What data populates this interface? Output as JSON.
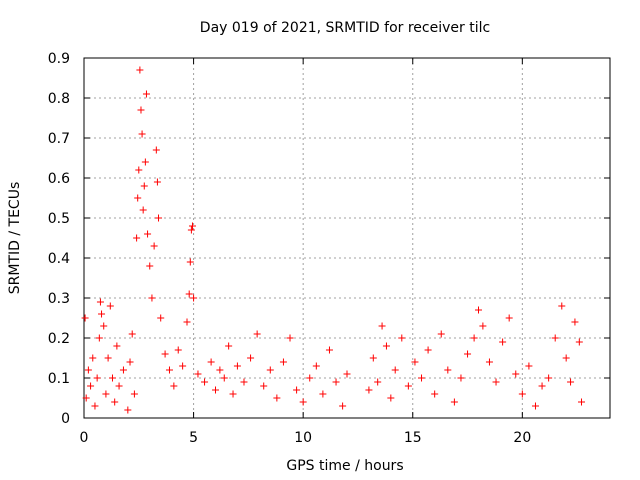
{
  "chart_data": {
    "type": "scatter",
    "title": "Day 019 of 2021, SRMTID for receiver tilc",
    "xlabel": "GPS time / hours",
    "ylabel": "SRMTID / TECUs",
    "xlim": [
      0,
      24
    ],
    "ylim": [
      0,
      0.9
    ],
    "xticks": [
      0,
      5,
      10,
      15,
      20
    ],
    "yticks": [
      0,
      0.1,
      0.2,
      0.3,
      0.4,
      0.5,
      0.6,
      0.7,
      0.8,
      0.9
    ],
    "ytick_labels": [
      "0",
      "0.1",
      "0.2",
      "0.3",
      "0.4",
      "0.5",
      "0.6",
      "0.7",
      "0.8",
      "0.9"
    ],
    "grid": true,
    "marker": "plus",
    "color": "#ff0000",
    "series": [
      {
        "values": [
          {
            "x": 0.05,
            "y": 0.25
          },
          {
            "x": 0.1,
            "y": 0.05
          },
          {
            "x": 0.2,
            "y": 0.12
          },
          {
            "x": 0.3,
            "y": 0.08
          },
          {
            "x": 0.4,
            "y": 0.15
          },
          {
            "x": 0.5,
            "y": 0.03
          },
          {
            "x": 0.6,
            "y": 0.1
          },
          {
            "x": 0.7,
            "y": 0.2
          },
          {
            "x": 0.75,
            "y": 0.29
          },
          {
            "x": 0.8,
            "y": 0.26
          },
          {
            "x": 0.9,
            "y": 0.23
          },
          {
            "x": 1.0,
            "y": 0.06
          },
          {
            "x": 1.1,
            "y": 0.15
          },
          {
            "x": 1.2,
            "y": 0.28
          },
          {
            "x": 1.3,
            "y": 0.1
          },
          {
            "x": 1.4,
            "y": 0.04
          },
          {
            "x": 1.5,
            "y": 0.18
          },
          {
            "x": 1.6,
            "y": 0.08
          },
          {
            "x": 1.8,
            "y": 0.12
          },
          {
            "x": 2.0,
            "y": 0.02
          },
          {
            "x": 2.1,
            "y": 0.14
          },
          {
            "x": 2.2,
            "y": 0.21
          },
          {
            "x": 2.3,
            "y": 0.06
          },
          {
            "x": 2.4,
            "y": 0.45
          },
          {
            "x": 2.45,
            "y": 0.55
          },
          {
            "x": 2.5,
            "y": 0.62
          },
          {
            "x": 2.55,
            "y": 0.87
          },
          {
            "x": 2.6,
            "y": 0.77
          },
          {
            "x": 2.65,
            "y": 0.71
          },
          {
            "x": 2.7,
            "y": 0.52
          },
          {
            "x": 2.75,
            "y": 0.58
          },
          {
            "x": 2.8,
            "y": 0.64
          },
          {
            "x": 2.85,
            "y": 0.81
          },
          {
            "x": 2.9,
            "y": 0.46
          },
          {
            "x": 3.0,
            "y": 0.38
          },
          {
            "x": 3.1,
            "y": 0.3
          },
          {
            "x": 3.2,
            "y": 0.43
          },
          {
            "x": 3.3,
            "y": 0.67
          },
          {
            "x": 3.35,
            "y": 0.59
          },
          {
            "x": 3.4,
            "y": 0.5
          },
          {
            "x": 3.5,
            "y": 0.25
          },
          {
            "x": 3.7,
            "y": 0.16
          },
          {
            "x": 3.9,
            "y": 0.12
          },
          {
            "x": 4.1,
            "y": 0.08
          },
          {
            "x": 4.3,
            "y": 0.17
          },
          {
            "x": 4.5,
            "y": 0.13
          },
          {
            "x": 4.7,
            "y": 0.24
          },
          {
            "x": 4.8,
            "y": 0.31
          },
          {
            "x": 4.85,
            "y": 0.39
          },
          {
            "x": 4.9,
            "y": 0.47
          },
          {
            "x": 4.95,
            "y": 0.48
          },
          {
            "x": 5.0,
            "y": 0.3
          },
          {
            "x": 5.2,
            "y": 0.11
          },
          {
            "x": 5.5,
            "y": 0.09
          },
          {
            "x": 5.8,
            "y": 0.14
          },
          {
            "x": 6.0,
            "y": 0.07
          },
          {
            "x": 6.2,
            "y": 0.12
          },
          {
            "x": 6.4,
            "y": 0.1
          },
          {
            "x": 6.6,
            "y": 0.18
          },
          {
            "x": 6.8,
            "y": 0.06
          },
          {
            "x": 7.0,
            "y": 0.13
          },
          {
            "x": 7.3,
            "y": 0.09
          },
          {
            "x": 7.6,
            "y": 0.15
          },
          {
            "x": 7.9,
            "y": 0.21
          },
          {
            "x": 8.2,
            "y": 0.08
          },
          {
            "x": 8.5,
            "y": 0.12
          },
          {
            "x": 8.8,
            "y": 0.05
          },
          {
            "x": 9.1,
            "y": 0.14
          },
          {
            "x": 9.4,
            "y": 0.2
          },
          {
            "x": 9.7,
            "y": 0.07
          },
          {
            "x": 10.0,
            "y": 0.04
          },
          {
            "x": 10.3,
            "y": 0.1
          },
          {
            "x": 10.6,
            "y": 0.13
          },
          {
            "x": 10.9,
            "y": 0.06
          },
          {
            "x": 11.2,
            "y": 0.17
          },
          {
            "x": 11.5,
            "y": 0.09
          },
          {
            "x": 11.8,
            "y": 0.03
          },
          {
            "x": 12.0,
            "y": 0.11
          },
          {
            "x": 13.0,
            "y": 0.07
          },
          {
            "x": 13.2,
            "y": 0.15
          },
          {
            "x": 13.4,
            "y": 0.09
          },
          {
            "x": 13.6,
            "y": 0.23
          },
          {
            "x": 13.8,
            "y": 0.18
          },
          {
            "x": 14.0,
            "y": 0.05
          },
          {
            "x": 14.2,
            "y": 0.12
          },
          {
            "x": 14.5,
            "y": 0.2
          },
          {
            "x": 14.8,
            "y": 0.08
          },
          {
            "x": 15.1,
            "y": 0.14
          },
          {
            "x": 15.4,
            "y": 0.1
          },
          {
            "x": 15.7,
            "y": 0.17
          },
          {
            "x": 16.0,
            "y": 0.06
          },
          {
            "x": 16.3,
            "y": 0.21
          },
          {
            "x": 16.6,
            "y": 0.12
          },
          {
            "x": 16.9,
            "y": 0.04
          },
          {
            "x": 17.2,
            "y": 0.1
          },
          {
            "x": 17.5,
            "y": 0.16
          },
          {
            "x": 17.8,
            "y": 0.2
          },
          {
            "x": 18.0,
            "y": 0.27
          },
          {
            "x": 18.2,
            "y": 0.23
          },
          {
            "x": 18.5,
            "y": 0.14
          },
          {
            "x": 18.8,
            "y": 0.09
          },
          {
            "x": 19.1,
            "y": 0.19
          },
          {
            "x": 19.4,
            "y": 0.25
          },
          {
            "x": 19.7,
            "y": 0.11
          },
          {
            "x": 20.0,
            "y": 0.06
          },
          {
            "x": 20.3,
            "y": 0.13
          },
          {
            "x": 20.6,
            "y": 0.03
          },
          {
            "x": 20.9,
            "y": 0.08
          },
          {
            "x": 21.2,
            "y": 0.1
          },
          {
            "x": 21.5,
            "y": 0.2
          },
          {
            "x": 21.8,
            "y": 0.28
          },
          {
            "x": 22.0,
            "y": 0.15
          },
          {
            "x": 22.2,
            "y": 0.09
          },
          {
            "x": 22.4,
            "y": 0.24
          },
          {
            "x": 22.6,
            "y": 0.19
          },
          {
            "x": 22.7,
            "y": 0.04
          }
        ]
      }
    ]
  }
}
